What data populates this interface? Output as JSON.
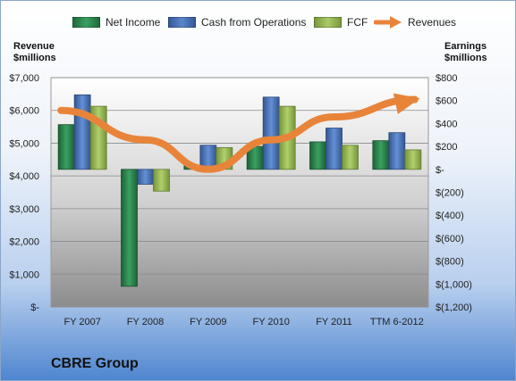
{
  "legend": {
    "net_income": "Net Income",
    "cfo": "Cash from Operations",
    "fcf": "FCF",
    "revenues": "Revenues"
  },
  "left_axis_title": [
    "Revenue",
    "$millions"
  ],
  "right_axis_title": [
    "Earnings",
    "$millions"
  ],
  "company": "CBRE Group",
  "colors": {
    "net_income": "#2e8b50",
    "cfo": "#4a72b8",
    "fcf": "#98b856",
    "revenues": "#e8843a"
  },
  "chart_data": {
    "type": "bar",
    "categories": [
      "FY 2007",
      "FY 2008",
      "FY 2009",
      "FY 2010",
      "FY 2011",
      "TTM 6-2012"
    ],
    "left_axis": {
      "label": "Revenue $millions",
      "ylim": [
        0,
        7000
      ],
      "ticks": [
        0,
        1000,
        2000,
        3000,
        4000,
        5000,
        6000,
        7000
      ],
      "tick_labels": [
        "$-",
        "$1,000",
        "$2,000",
        "$3,000",
        "$4,000",
        "$5,000",
        "$6,000",
        "$7,000"
      ]
    },
    "right_axis": {
      "label": "Earnings $millions",
      "ylim": [
        -1200,
        800
      ],
      "ticks": [
        -1200,
        -1000,
        -800,
        -600,
        -400,
        -200,
        0,
        200,
        400,
        600,
        800
      ],
      "tick_labels": [
        "$(1,200)",
        "$(1,000)",
        "$(800)",
        "$(600)",
        "$(400)",
        "$(200)",
        "$-",
        "$200",
        "$400",
        "$600",
        "$800"
      ]
    },
    "series": [
      {
        "name": "Net Income",
        "axis": "right",
        "values": [
          390,
          -1020,
          30,
          200,
          240,
          250
        ]
      },
      {
        "name": "Cash from Operations",
        "axis": "right",
        "values": [
          650,
          -130,
          210,
          630,
          360,
          320
        ]
      },
      {
        "name": "FCF",
        "axis": "right",
        "values": [
          550,
          -190,
          190,
          550,
          210,
          170
        ]
      },
      {
        "name": "Revenues",
        "axis": "left",
        "type": "line",
        "values": [
          6000,
          5100,
          4200,
          5100,
          5800,
          6250
        ]
      }
    ],
    "grid": true
  }
}
